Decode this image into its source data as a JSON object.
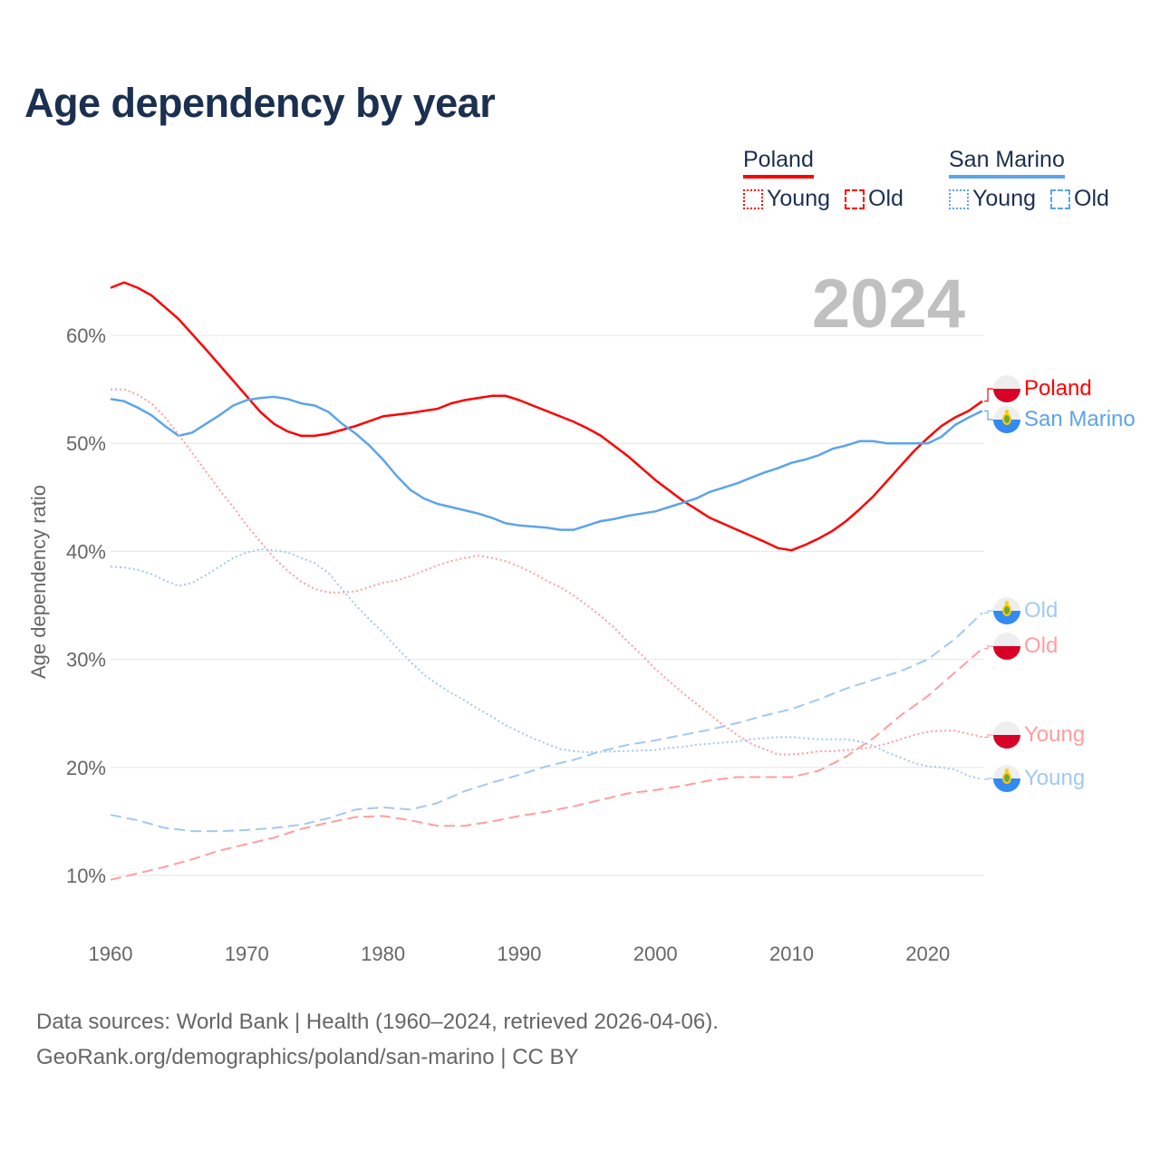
{
  "title": "Age dependency by year",
  "current_year": "2024",
  "legend": {
    "groups": [
      {
        "name": "Poland",
        "color": "#ff0000",
        "items": [
          "Young",
          "Old"
        ]
      },
      {
        "name": "San Marino",
        "color": "#5ca4ea",
        "items": [
          "Young",
          "Old"
        ]
      }
    ]
  },
  "end_labels": [
    "Poland",
    "San Marino",
    "Old",
    "Old",
    "Young",
    "Young"
  ],
  "source": {
    "line1": "Data sources: World Bank | Health (1960–2024, retrieved 2026-04-06).",
    "line2": "GeoRank.org/demographics/poland/san-marino | CC BY"
  },
  "chart_data": {
    "type": "line",
    "title": "Age dependency by year",
    "xlabel": "",
    "ylabel": "Age dependency ratio",
    "xlim": [
      1960,
      2024
    ],
    "ylim": [
      5,
      67
    ],
    "x_ticks": [
      "1960",
      "1970",
      "1980",
      "1990",
      "2000",
      "2010",
      "2020"
    ],
    "y_ticks": [
      "10%",
      "20%",
      "30%",
      "40%",
      "50%",
      "60%"
    ],
    "grid": true,
    "series": [
      {
        "name": "Poland",
        "country": "Poland",
        "kind": "total",
        "color": "#ff0000",
        "style": "solid",
        "x": [
          1960,
          1961,
          1962,
          1963,
          1965,
          1967,
          1969,
          1971,
          1972,
          1973,
          1974,
          1975,
          1976,
          1978,
          1980,
          1982,
          1983,
          1984,
          1985,
          1986,
          1987,
          1988,
          1989,
          1990,
          1991,
          1992,
          1993,
          1994,
          1995,
          1996,
          1998,
          2000,
          2002,
          2004,
          2006,
          2008,
          2009,
          2010,
          2011,
          2012,
          2013,
          2014,
          2015,
          2016,
          2017,
          2018,
          2019,
          2020,
          2021,
          2022,
          2023,
          2024
        ],
        "y": [
          64.4,
          64.9,
          64.4,
          63.7,
          61.5,
          58.7,
          55.8,
          52.9,
          51.8,
          51.1,
          50.7,
          50.7,
          50.9,
          51.6,
          52.5,
          52.8,
          53.0,
          53.2,
          53.7,
          54.0,
          54.2,
          54.4,
          54.4,
          54.0,
          53.5,
          53.0,
          52.5,
          52.0,
          51.4,
          50.7,
          48.8,
          46.6,
          44.7,
          43.1,
          42.0,
          40.9,
          40.3,
          40.1,
          40.6,
          41.2,
          41.9,
          42.8,
          43.9,
          45.1,
          46.5,
          47.9,
          49.3,
          50.5,
          51.6,
          52.4,
          53.0,
          53.9
        ]
      },
      {
        "name": "San Marino",
        "country": "San Marino",
        "kind": "total",
        "color": "#5ca4ea",
        "style": "solid",
        "x": [
          1960,
          1961,
          1962,
          1963,
          1964,
          1965,
          1966,
          1967,
          1968,
          1969,
          1970,
          1971,
          1972,
          1973,
          1974,
          1975,
          1976,
          1977,
          1978,
          1979,
          1980,
          1981,
          1982,
          1983,
          1984,
          1985,
          1986,
          1987,
          1988,
          1989,
          1990,
          1992,
          1993,
          1994,
          1995,
          1996,
          1997,
          1998,
          1999,
          2000,
          2001,
          2002,
          2003,
          2004,
          2005,
          2006,
          2007,
          2008,
          2009,
          2010,
          2011,
          2012,
          2013,
          2014,
          2015,
          2016,
          2017,
          2018,
          2019,
          2020,
          2021,
          2022,
          2023,
          2024
        ],
        "y": [
          54.1,
          53.9,
          53.3,
          52.6,
          51.6,
          50.7,
          51.0,
          51.8,
          52.6,
          53.5,
          54.0,
          54.2,
          54.3,
          54.1,
          53.7,
          53.5,
          52.9,
          51.8,
          50.9,
          49.8,
          48.5,
          47.0,
          45.7,
          44.9,
          44.4,
          44.1,
          43.8,
          43.5,
          43.1,
          42.6,
          42.4,
          42.2,
          42.0,
          42.0,
          42.4,
          42.8,
          43.0,
          43.3,
          43.5,
          43.7,
          44.1,
          44.5,
          44.9,
          45.5,
          45.9,
          46.3,
          46.8,
          47.3,
          47.7,
          48.2,
          48.5,
          48.9,
          49.5,
          49.8,
          50.2,
          50.2,
          50.0,
          50.0,
          50.0,
          50.0,
          50.6,
          51.7,
          52.4,
          53.0
        ]
      },
      {
        "name": "Old",
        "country": "San Marino",
        "kind": "old",
        "color": "#a3c9f0",
        "style": "dashed",
        "x": [
          1960,
          1962,
          1964,
          1966,
          1968,
          1970,
          1972,
          1974,
          1976,
          1978,
          1980,
          1982,
          1984,
          1986,
          1988,
          1990,
          1992,
          1994,
          1996,
          1998,
          2000,
          2002,
          2004,
          2006,
          2008,
          2010,
          2012,
          2014,
          2016,
          2018,
          2020,
          2022,
          2024
        ],
        "y": [
          15.6,
          15.1,
          14.4,
          14.1,
          14.1,
          14.2,
          14.4,
          14.7,
          15.3,
          16.1,
          16.3,
          16.1,
          16.7,
          17.8,
          18.6,
          19.3,
          20.1,
          20.7,
          21.5,
          22.1,
          22.5,
          23.0,
          23.5,
          24.1,
          24.8,
          25.4,
          26.3,
          27.3,
          28.1,
          28.9,
          30.0,
          31.9,
          34.3
        ]
      },
      {
        "name": "Old",
        "country": "Poland",
        "kind": "old",
        "color": "#ff9ea0",
        "style": "dashed",
        "x": [
          1960,
          1962,
          1964,
          1966,
          1968,
          1970,
          1972,
          1974,
          1976,
          1978,
          1980,
          1982,
          1984,
          1986,
          1988,
          1990,
          1992,
          1994,
          1996,
          1998,
          2000,
          2002,
          2004,
          2006,
          2008,
          2010,
          2012,
          2014,
          2016,
          2018,
          2020,
          2022,
          2024
        ],
        "y": [
          9.6,
          10.2,
          10.8,
          11.5,
          12.3,
          12.9,
          13.5,
          14.3,
          14.9,
          15.4,
          15.5,
          15.1,
          14.6,
          14.6,
          15.0,
          15.5,
          15.9,
          16.4,
          17.0,
          17.6,
          17.9,
          18.3,
          18.8,
          19.1,
          19.1,
          19.1,
          19.7,
          21.0,
          22.7,
          24.8,
          26.6,
          28.8,
          31.0
        ]
      },
      {
        "name": "Young",
        "country": "Poland",
        "kind": "young",
        "color": "#ff9ea0",
        "style": "dotted",
        "x": [
          1960,
          1961,
          1962,
          1963,
          1964,
          1965,
          1966,
          1967,
          1968,
          1969,
          1970,
          1971,
          1972,
          1973,
          1974,
          1975,
          1976,
          1977,
          1978,
          1979,
          1980,
          1981,
          1982,
          1983,
          1984,
          1985,
          1986,
          1987,
          1988,
          1989,
          1990,
          1991,
          1992,
          1993,
          1994,
          1995,
          1996,
          1997,
          1998,
          1999,
          2000,
          2001,
          2002,
          2003,
          2004,
          2005,
          2006,
          2007,
          2008,
          2009,
          2010,
          2011,
          2012,
          2013,
          2014,
          2015,
          2016,
          2017,
          2018,
          2019,
          2020,
          2021,
          2022,
          2023,
          2024
        ],
        "y": [
          55.0,
          55.0,
          54.5,
          53.7,
          52.4,
          50.8,
          49.1,
          47.4,
          45.7,
          44.1,
          42.4,
          40.9,
          39.4,
          38.2,
          37.2,
          36.5,
          36.2,
          36.2,
          36.3,
          36.7,
          37.1,
          37.3,
          37.7,
          38.2,
          38.7,
          39.1,
          39.4,
          39.6,
          39.4,
          39.1,
          38.6,
          38.0,
          37.3,
          36.7,
          35.9,
          35.0,
          34.0,
          32.9,
          31.6,
          30.4,
          29.1,
          28.0,
          26.9,
          25.9,
          24.9,
          23.9,
          23.0,
          22.2,
          21.7,
          21.2,
          21.2,
          21.3,
          21.5,
          21.5,
          21.6,
          21.7,
          21.9,
          22.2,
          22.6,
          23.0,
          23.3,
          23.4,
          23.4,
          23.1,
          22.8
        ]
      },
      {
        "name": "Young",
        "country": "San Marino",
        "kind": "young",
        "color": "#a3c9f0",
        "style": "dotted",
        "x": [
          1960,
          1961,
          1962,
          1963,
          1964,
          1965,
          1966,
          1967,
          1968,
          1969,
          1970,
          1971,
          1972,
          1973,
          1974,
          1975,
          1976,
          1977,
          1978,
          1979,
          1980,
          1981,
          1982,
          1983,
          1984,
          1985,
          1986,
          1987,
          1988,
          1989,
          1990,
          1991,
          1992,
          1993,
          1994,
          1995,
          2000,
          2001,
          2002,
          2003,
          2004,
          2005,
          2006,
          2007,
          2008,
          2009,
          2010,
          2011,
          2012,
          2014,
          2015,
          2016,
          2017,
          2018,
          2019,
          2020,
          2021,
          2022,
          2023,
          2024
        ],
        "y": [
          38.6,
          38.5,
          38.3,
          37.9,
          37.3,
          36.8,
          37.1,
          37.8,
          38.6,
          39.4,
          39.9,
          40.2,
          40.1,
          39.9,
          39.4,
          38.9,
          38.0,
          36.5,
          35.0,
          33.7,
          32.5,
          31.1,
          29.8,
          28.6,
          27.7,
          26.9,
          26.2,
          25.4,
          24.7,
          23.9,
          23.3,
          22.7,
          22.2,
          21.7,
          21.5,
          21.4,
          21.6,
          21.8,
          21.9,
          22.1,
          22.2,
          22.3,
          22.4,
          22.6,
          22.7,
          22.8,
          22.8,
          22.7,
          22.6,
          22.6,
          22.4,
          22.0,
          21.4,
          20.9,
          20.4,
          20.1,
          20.0,
          19.8,
          19.2,
          18.9
        ]
      }
    ]
  }
}
